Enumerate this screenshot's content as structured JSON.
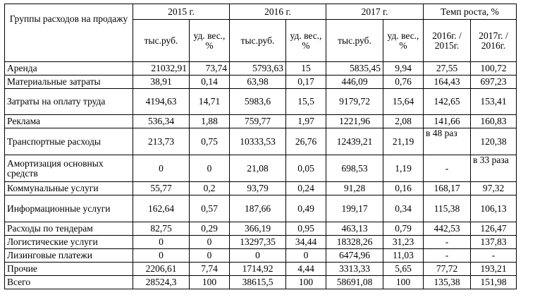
{
  "header": {
    "category": "Группы расходов на продажу",
    "years": [
      "2015 г.",
      "2016 г.",
      "2017 г."
    ],
    "growth": "Темп роста, %",
    "unit_value": "тыс.руб.",
    "unit_weight": "уд. вес., %",
    "growth_cols": [
      "2016г. / 2015г.",
      "2017г. / 2016г."
    ]
  },
  "rows": [
    {
      "name": "Аренда",
      "c": [
        "21032,91",
        "73,74",
        "5793,63",
        "15",
        "5835,45",
        "9,94",
        "27,55",
        "100,72"
      ]
    },
    {
      "name": "Материальные затраты",
      "c": [
        "38,91",
        "0,14",
        "63,98",
        "0,17",
        "446,09",
        "0,76",
        "164,43",
        "697,23"
      ]
    },
    {
      "name": "Затраты на оплату труда",
      "c": [
        "4194,63",
        "14,71",
        "5983,6",
        "15,5",
        "9179,72",
        "15,64",
        "142,65",
        "153,41"
      ]
    },
    {
      "name": "Реклама",
      "c": [
        "536,34",
        "1,88",
        "759,77",
        "1,97",
        "1221,96",
        "2,08",
        "141,66",
        "160,83"
      ]
    },
    {
      "name": "Транспортные расходы",
      "c": [
        "213,73",
        "0,75",
        "10333,53",
        "26,76",
        "12439,21",
        "21,19",
        "в 48 раз",
        "120,38"
      ]
    },
    {
      "name": "Амортизация основных средств",
      "c": [
        "0",
        "0",
        "21,08",
        "0,05",
        "698,53",
        "1,19",
        "-",
        "в 33 раза"
      ]
    },
    {
      "name": "Коммунальные услуги",
      "c": [
        "55,77",
        "0,2",
        "93,79",
        "0,24",
        "91,28",
        "0,16",
        "168,17",
        "97,32"
      ]
    },
    {
      "name": "Информационные услуги",
      "c": [
        "162,64",
        "0,57",
        "187,66",
        "0,49",
        "199,17",
        "0,34",
        "115,38",
        "106,13"
      ]
    },
    {
      "name": "Расходы по тендерам",
      "c": [
        "82,75",
        "0,29",
        "366,19",
        "0,95",
        "463,13",
        "0,79",
        "442,53",
        "126,47"
      ]
    },
    {
      "name": "Логистические услуги",
      "c": [
        "0",
        "0",
        "13297,35",
        "34,44",
        "18328,26",
        "31,23",
        "-",
        "137,83"
      ]
    },
    {
      "name": "Лизинговые платежи",
      "c": [
        "0",
        "0",
        "0",
        "0",
        "6474,96",
        "11,03",
        "-",
        "-"
      ]
    },
    {
      "name": "Прочие",
      "c": [
        "2206,61",
        "7,74",
        "1714,92",
        "4,44",
        "3313,33",
        "5,65",
        "77,72",
        "193,21"
      ]
    },
    {
      "name": "Всего",
      "c": [
        "28524,3",
        "100",
        "38615,5",
        "100",
        "58691,08",
        "100",
        "135,38",
        "151,98"
      ]
    }
  ]
}
